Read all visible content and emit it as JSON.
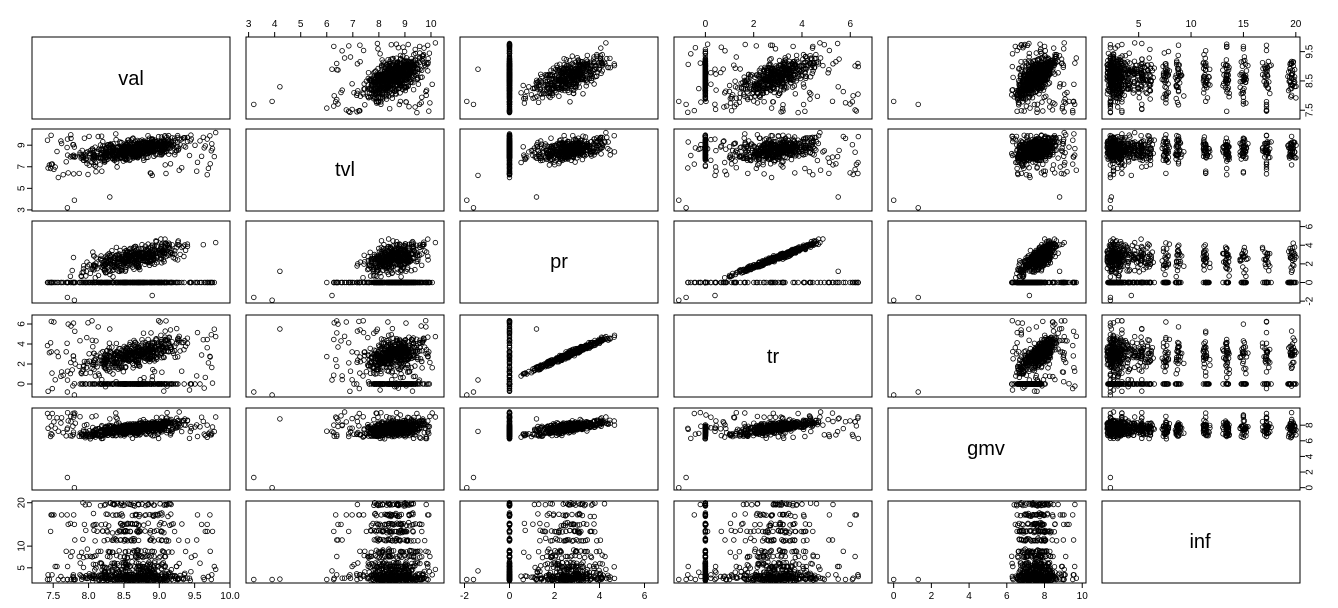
{
  "chart_data": {
    "type": "scatter",
    "layout": "scatterplot-matrix",
    "variables": [
      "val",
      "tvl",
      "pr",
      "tr",
      "gmv",
      "inf"
    ],
    "ranges": {
      "val": [
        7.2,
        10.0
      ],
      "tvl": [
        2.9,
        10.5
      ],
      "pr": [
        -2.2,
        6.6
      ],
      "tr": [
        -1.3,
        6.9
      ],
      "gmv": [
        -0.3,
        10.2
      ],
      "inf": [
        1.5,
        20.4
      ]
    },
    "ticks": {
      "val": [
        "7.5",
        "8.0",
        "8.5",
        "9.0",
        "9.5",
        "10.0"
      ],
      "tvl": [
        "3",
        "4",
        "5",
        "6",
        "7",
        "8",
        "9",
        "10"
      ],
      "pr": [
        "-2",
        "0",
        "2",
        "4",
        "6"
      ],
      "tr": [
        "0",
        "2",
        "4",
        "6"
      ],
      "gmv": [
        "0",
        "2",
        "4",
        "6",
        "8",
        "10"
      ],
      "inf": [
        "5",
        "10",
        "15",
        "20"
      ]
    },
    "left_axis_ticks": {
      "tvl": [
        "3",
        "5",
        "7",
        "9"
      ],
      "tr": [
        "0",
        "2",
        "4",
        "6"
      ],
      "inf": [
        "5",
        "10",
        "20"
      ]
    },
    "right_axis_ticks": {
      "val": [
        "7.5",
        "8.5",
        "9.5"
      ],
      "pr": [
        "-2",
        "0",
        "2",
        "4",
        "6"
      ],
      "gmv": [
        "0",
        "2",
        "4",
        "6",
        "8"
      ]
    },
    "marker": "open-circle",
    "marker_color": "#000000",
    "grid": false,
    "legend": "none"
  }
}
